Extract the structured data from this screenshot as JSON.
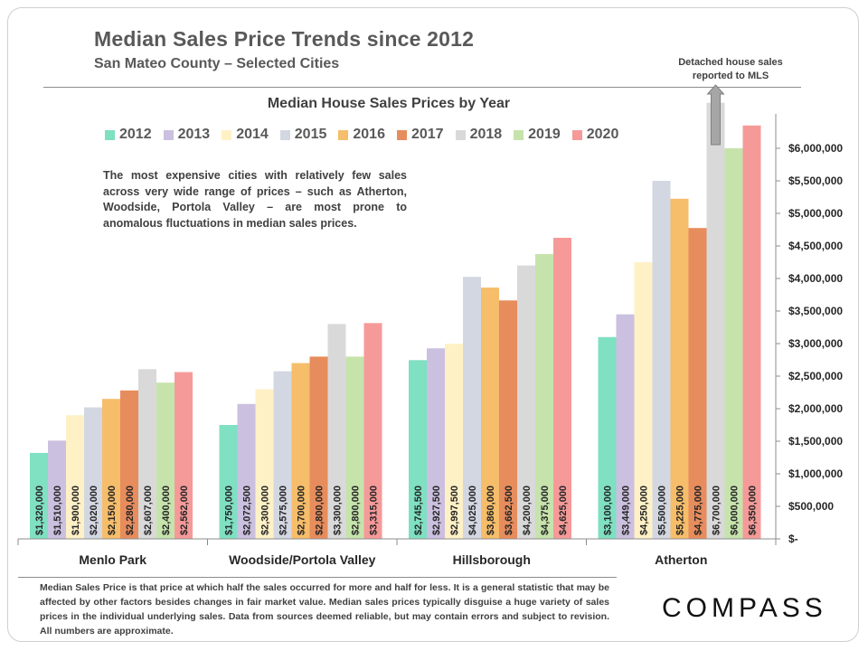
{
  "header": {
    "title": "Median Sales Price Trends since 2012",
    "subtitle": "San Mateo County – Selected Cities",
    "callout": "Detached house sales reported to MLS"
  },
  "note": "The most expensive cities with relatively few sales across very wide range of prices – such as Atherton, Woodside, Portola Valley – are most prone to anomalous fluctuations in median sales prices.",
  "footnote": "Median Sales Price is that price at which half the sales occurred for more and half for less. It is a general statistic that may be affected by other factors besides changes in fair market value. Median sales prices typically disguise a huge variety of sales prices in the individual underlying sales. Data from sources deemed reliable, but may contain errors and subject to revision.  All numbers are approximate.",
  "logo": "COMPASS",
  "colors": {
    "2012": "#7fe0c2",
    "2013": "#cbc0df",
    "2014": "#fff1c6",
    "2015": "#d3d7e2",
    "2016": "#f6bd6a",
    "2017": "#e78c5c",
    "2018": "#d9d9d9",
    "2019": "#c6e3ac",
    "2020": "#f59a99"
  },
  "chart_data": {
    "type": "bar",
    "title": "Median House Sales Prices by Year",
    "categories": [
      "Menlo Park",
      "Woodside/Portola Valley",
      "Hillsborough",
      "Atherton"
    ],
    "ylim": [
      0,
      6500000
    ],
    "y_ticks": [
      0,
      500000,
      1000000,
      1500000,
      2000000,
      2500000,
      3000000,
      3500000,
      4000000,
      4500000,
      5000000,
      5500000,
      6000000
    ],
    "y_tick_labels": [
      "$-",
      "$500,000",
      "$1,000,000",
      "$1,500,000",
      "$2,000,000",
      "$2,500,000",
      "$3,000,000",
      "$3,500,000",
      "$4,000,000",
      "$4,500,000",
      "$5,000,000",
      "$5,500,000",
      "$6,000,000"
    ],
    "y_axis_position": "right",
    "legend_position": "top",
    "grid": false,
    "series": [
      {
        "name": "2012",
        "values": [
          1320000,
          1750000,
          2745500,
          3100000
        ],
        "labels": [
          "$1,320,000",
          "$1,750,000",
          "$2,745,500",
          "$3,100,000"
        ]
      },
      {
        "name": "2013",
        "values": [
          1510000,
          2072500,
          2927500,
          3449000
        ],
        "labels": [
          "$1,510,000",
          "$2,072,500",
          "$2,927,500",
          "$3,449,000"
        ]
      },
      {
        "name": "2014",
        "values": [
          1900000,
          2300000,
          2997500,
          4250000
        ],
        "labels": [
          "$1,900,000",
          "$2,300,000",
          "$2,997,500",
          "$4,250,000"
        ]
      },
      {
        "name": "2015",
        "values": [
          2020000,
          2575000,
          4025000,
          5500000
        ],
        "labels": [
          "$2,020,000",
          "$2,575,000",
          "$4,025,000",
          "$5,500,000"
        ]
      },
      {
        "name": "2016",
        "values": [
          2150000,
          2700000,
          3860000,
          5225000
        ],
        "labels": [
          "$2,150,000",
          "$2,700,000",
          "$3,860,000",
          "$5,225,000"
        ]
      },
      {
        "name": "2017",
        "values": [
          2280000,
          2800000,
          3662500,
          4775000
        ],
        "labels": [
          "$2,280,000",
          "$2,800,000",
          "$3,662,500",
          "$4,775,000"
        ]
      },
      {
        "name": "2018",
        "values": [
          2607000,
          3300000,
          4200000,
          6700000
        ],
        "labels": [
          "$2,607,000",
          "$3,300,000",
          "$4,200,000",
          "$6,700,000"
        ]
      },
      {
        "name": "2019",
        "values": [
          2400000,
          2800000,
          4375000,
          6000000
        ],
        "labels": [
          "$2,400,000",
          "$2,800,000",
          "$4,375,000",
          "$6,000,000"
        ]
      },
      {
        "name": "2020",
        "values": [
          2562000,
          3315000,
          4625000,
          6350000
        ],
        "labels": [
          "$2,562,000",
          "$3,315,000",
          "$4,625,000",
          "$6,350,000"
        ]
      }
    ]
  }
}
